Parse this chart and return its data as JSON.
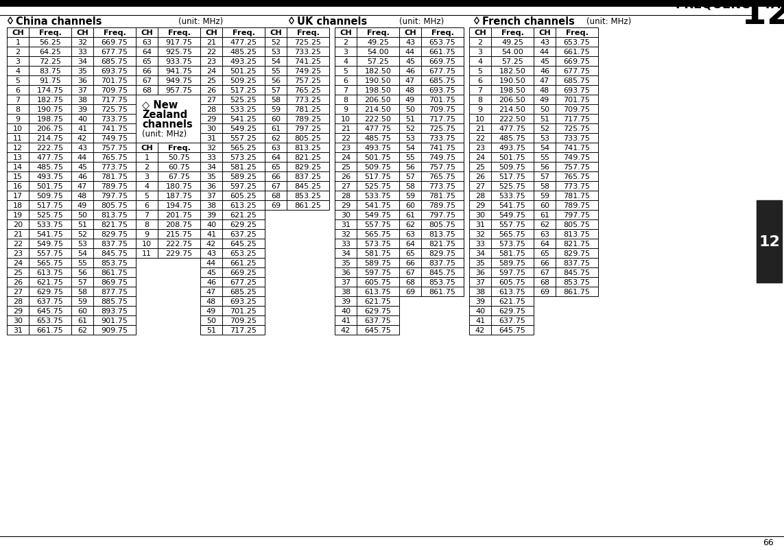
{
  "bg_color": "#ffffff",
  "china_col1_ch": [
    1,
    2,
    3,
    4,
    5,
    6,
    7,
    8,
    9,
    10,
    11,
    12,
    13,
    14,
    15,
    16,
    17,
    18,
    19,
    20,
    21,
    22,
    23,
    24,
    25,
    26,
    27,
    28,
    29,
    30,
    31
  ],
  "china_col1_freq": [
    "56.25",
    "64.25",
    "72.25",
    "83.75",
    "91.75",
    "174.75",
    "182.75",
    "190.75",
    "198.75",
    "206.75",
    "214.75",
    "222.75",
    "477.75",
    "485.75",
    "493.75",
    "501.75",
    "509.75",
    "517.75",
    "525.75",
    "533.75",
    "541.75",
    "549.75",
    "557.75",
    "565.75",
    "613.75",
    "621.75",
    "629.75",
    "637.75",
    "645.75",
    "653.75",
    "661.75"
  ],
  "china_col2_ch": [
    32,
    33,
    34,
    35,
    36,
    37,
    38,
    39,
    40,
    41,
    42,
    43,
    44,
    45,
    46,
    47,
    48,
    49,
    50,
    51,
    52,
    53,
    54,
    55,
    56,
    57,
    58,
    59,
    60,
    61,
    62
  ],
  "china_col2_freq": [
    "669.75",
    "677.75",
    "685.75",
    "693.75",
    "701.75",
    "709.75",
    "717.75",
    "725.75",
    "733.75",
    "741.75",
    "749.75",
    "757.75",
    "765.75",
    "773.75",
    "781.75",
    "789.75",
    "797.75",
    "805.75",
    "813.75",
    "821.75",
    "829.75",
    "837.75",
    "845.75",
    "853.75",
    "861.75",
    "869.75",
    "877.75",
    "885.75",
    "893.75",
    "901.75",
    "909.75"
  ],
  "china_col3_ch": [
    63,
    64,
    65,
    66,
    67,
    68
  ],
  "china_col3_freq": [
    "917.75",
    "925.75",
    "933.75",
    "941.75",
    "949.75",
    "957.75"
  ],
  "nz_col1_ch": [
    1,
    2,
    3,
    4,
    5,
    6,
    7,
    8,
    9,
    10,
    11
  ],
  "nz_col1_freq": [
    "50.75",
    "60.75",
    "67.75",
    "180.75",
    "187.75",
    "194.75",
    "201.75",
    "208.75",
    "215.75",
    "222.75",
    "229.75"
  ],
  "nz_col2_ch": [
    21,
    22,
    23,
    24,
    25,
    26,
    27,
    28,
    29,
    30,
    31,
    32,
    33,
    34,
    35,
    36,
    37,
    38,
    39,
    40,
    41,
    42,
    43,
    44,
    45,
    46,
    47,
    48,
    49,
    50,
    51
  ],
  "nz_col2_freq": [
    "477.25",
    "485.25",
    "493.25",
    "501.25",
    "509.25",
    "517.25",
    "525.25",
    "533.25",
    "541.25",
    "549.25",
    "557.25",
    "565.25",
    "573.25",
    "581.25",
    "589.25",
    "597.25",
    "605.25",
    "613.25",
    "621.25",
    "629.25",
    "637.25",
    "645.25",
    "653.25",
    "661.25",
    "669.25",
    "677.25",
    "685.25",
    "693.25",
    "701.25",
    "709.25",
    "717.25"
  ],
  "nz_col3_ch": [
    52,
    53,
    54,
    55,
    56,
    57,
    58,
    59,
    60,
    61,
    62,
    63,
    64,
    65,
    66,
    67,
    68,
    69
  ],
  "nz_col3_freq": [
    "725.25",
    "733.25",
    "741.25",
    "749.25",
    "757.25",
    "765.25",
    "773.25",
    "781.25",
    "789.25",
    "797.25",
    "805.25",
    "813.25",
    "821.25",
    "829.25",
    "837.25",
    "845.25",
    "853.25",
    "861.25"
  ],
  "uk_col1_ch": [
    2,
    3,
    4,
    5,
    6,
    7,
    8,
    9,
    10,
    21,
    22,
    23,
    24,
    25,
    26,
    27,
    28,
    29,
    30,
    31,
    32,
    33,
    34,
    35,
    36,
    37,
    38,
    39,
    40,
    41,
    42
  ],
  "uk_col1_freq": [
    "49.25",
    "54.00",
    "57.25",
    "182.50",
    "190.50",
    "198.50",
    "206.50",
    "214.50",
    "222.50",
    "477.75",
    "485.75",
    "493.75",
    "501.75",
    "509.75",
    "517.75",
    "525.75",
    "533.75",
    "541.75",
    "549.75",
    "557.75",
    "565.75",
    "573.75",
    "581.75",
    "589.75",
    "597.75",
    "605.75",
    "613.75",
    "621.75",
    "629.75",
    "637.75",
    "645.75"
  ],
  "uk_col2_ch": [
    43,
    44,
    45,
    46,
    47,
    48,
    49,
    50,
    51,
    52,
    53,
    54,
    55,
    56,
    57,
    58,
    59,
    60,
    61,
    62,
    63,
    64,
    65,
    66,
    67,
    68,
    69
  ],
  "uk_col2_freq": [
    "653.75",
    "661.75",
    "669.75",
    "677.75",
    "685.75",
    "693.75",
    "701.75",
    "709.75",
    "717.75",
    "725.75",
    "733.75",
    "741.75",
    "749.75",
    "757.75",
    "765.75",
    "773.75",
    "781.75",
    "789.75",
    "797.75",
    "805.75",
    "813.75",
    "821.75",
    "829.75",
    "837.75",
    "845.75",
    "853.75",
    "861.75"
  ],
  "french_col1_ch": [
    2,
    3,
    4,
    5,
    6,
    7,
    8,
    9,
    10,
    21,
    22,
    23,
    24,
    25,
    26,
    27,
    28,
    29,
    30,
    31,
    32,
    33,
    34,
    35,
    36,
    37,
    38,
    39,
    40,
    41,
    42
  ],
  "french_col1_freq": [
    "49.25",
    "54.00",
    "57.25",
    "182.50",
    "190.50",
    "198.50",
    "206.50",
    "214.50",
    "222.50",
    "477.75",
    "485.75",
    "493.75",
    "501.75",
    "509.75",
    "517.75",
    "525.75",
    "533.75",
    "541.75",
    "549.75",
    "557.75",
    "565.75",
    "573.75",
    "581.75",
    "589.75",
    "597.75",
    "605.75",
    "613.75",
    "621.75",
    "629.75",
    "637.75",
    "645.75"
  ],
  "french_col2_ch": [
    43,
    44,
    45,
    46,
    47,
    48,
    49,
    50,
    51,
    52,
    53,
    54,
    55,
    56,
    57,
    58,
    59,
    60,
    61,
    62,
    63,
    64,
    65,
    66,
    67,
    68,
    69
  ],
  "french_col2_freq": [
    "653.75",
    "661.75",
    "669.75",
    "677.75",
    "685.75",
    "693.75",
    "701.75",
    "709.75",
    "717.75",
    "725.75",
    "733.75",
    "741.75",
    "749.75",
    "757.75",
    "765.75",
    "773.75",
    "781.75",
    "789.75",
    "797.75",
    "805.75",
    "813.75",
    "821.75",
    "829.75",
    "837.75",
    "845.75",
    "853.75",
    "861.75"
  ]
}
